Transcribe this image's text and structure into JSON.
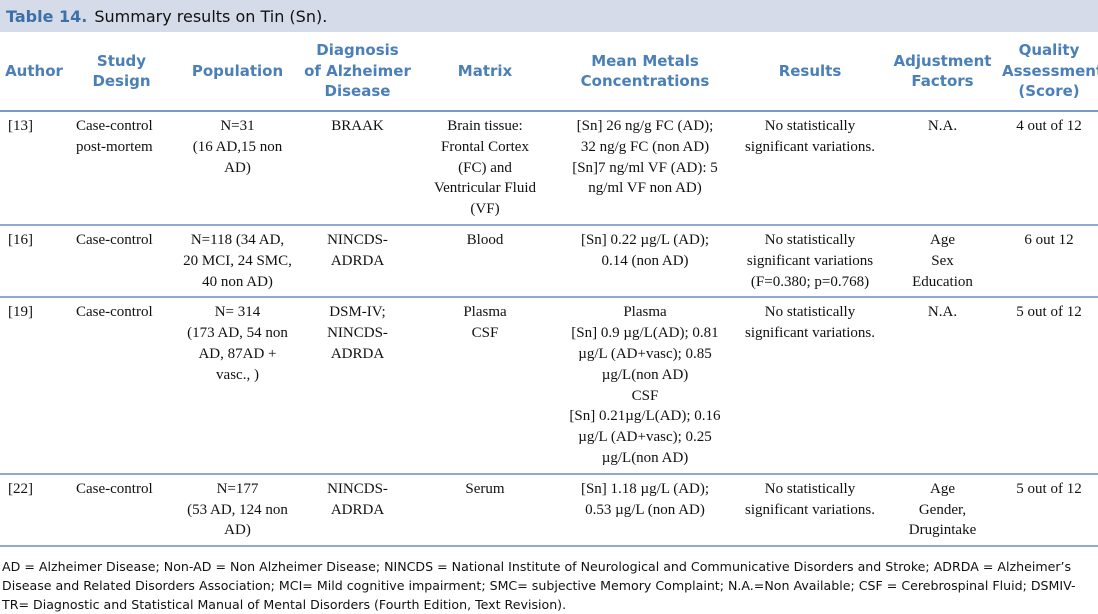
{
  "caption": {
    "label": "Table 14.",
    "title": "Summary results on Tin (Sn)."
  },
  "headers": [
    "Author",
    "Study\nDesign",
    "Population",
    "Diagnosis\nof Alzheimer\nDisease",
    "Matrix",
    "Mean Metals\nConcentrations",
    "Results",
    "Adjustment\nFactors",
    "Quality\nAssessment\n(Score)"
  ],
  "rows": [
    [
      "[13]",
      "Case-control\npost-mortem",
      "N=31\n(16 AD,15 non\nAD)",
      "BRAAK",
      "Brain tissue:\nFrontal Cortex\n(FC) and\nVentricular Fluid\n(VF)",
      "[Sn] 26 ng/g FC (AD);\n32 ng/g FC (non AD)\n[Sn]7 ng/ml VF (AD): 5\nng/ml VF non AD)",
      "No statistically\nsignificant variations.",
      "N.A.",
      "4 out of 12"
    ],
    [
      "[16]",
      "Case-control",
      "N=118 (34 AD,\n20 MCI, 24 SMC,\n40 non AD)",
      "NINCDS-\nADRDA",
      "Blood",
      "[Sn] 0.22 µg/L (AD);\n0.14 (non AD)",
      "No statistically\nsignificant variations\n(F=0.380; p=0.768)",
      "Age\nSex\nEducation",
      "6 out 12"
    ],
    [
      "[19]",
      "Case-control",
      "N= 314\n(173 AD, 54 non\nAD, 87AD +\nvasc., )",
      "DSM-IV;\nNINCDS-\nADRDA",
      "Plasma\nCSF",
      "Plasma\n[Sn] 0.9 µg/L(AD); 0.81\nµg/L (AD+vasc); 0.85\nµg/L(non AD)\nCSF\n[Sn] 0.21µg/L(AD); 0.16\nµg/L (AD+vasc); 0.25\nµg/L(non AD)",
      "No statistically\nsignificant variations.",
      "N.A.",
      "5 out of 12"
    ],
    [
      "[22]",
      "Case-control",
      "N=177\n(53 AD, 124 non\nAD)",
      "NINCDS-\nADRDA",
      "Serum",
      "[Sn] 1.18 µg/L (AD);\n0.53 µg/L (non AD)",
      "No statistically\nsignificant variations.",
      "Age\nGender,\nDrugintake",
      "5 out of 12"
    ]
  ],
  "footnote": "AD = Alzheimer Disease; Non-AD = Non Alzheimer Disease; NINCDS = National Institute of Neurological and Communicative Disorders and Stroke; ADRDA = Alzheimer’s Disease and Related Disorders Association; MCI= Mild cognitive impairment; SMC= subjective Memory Complaint; N.A.=Non Available; CSF = Cerebrospinal Fluid; DSMIV-TR= Diagnostic and Statistical Manual of Mental Disorders (Fourth Edition, Text Revision)."
}
